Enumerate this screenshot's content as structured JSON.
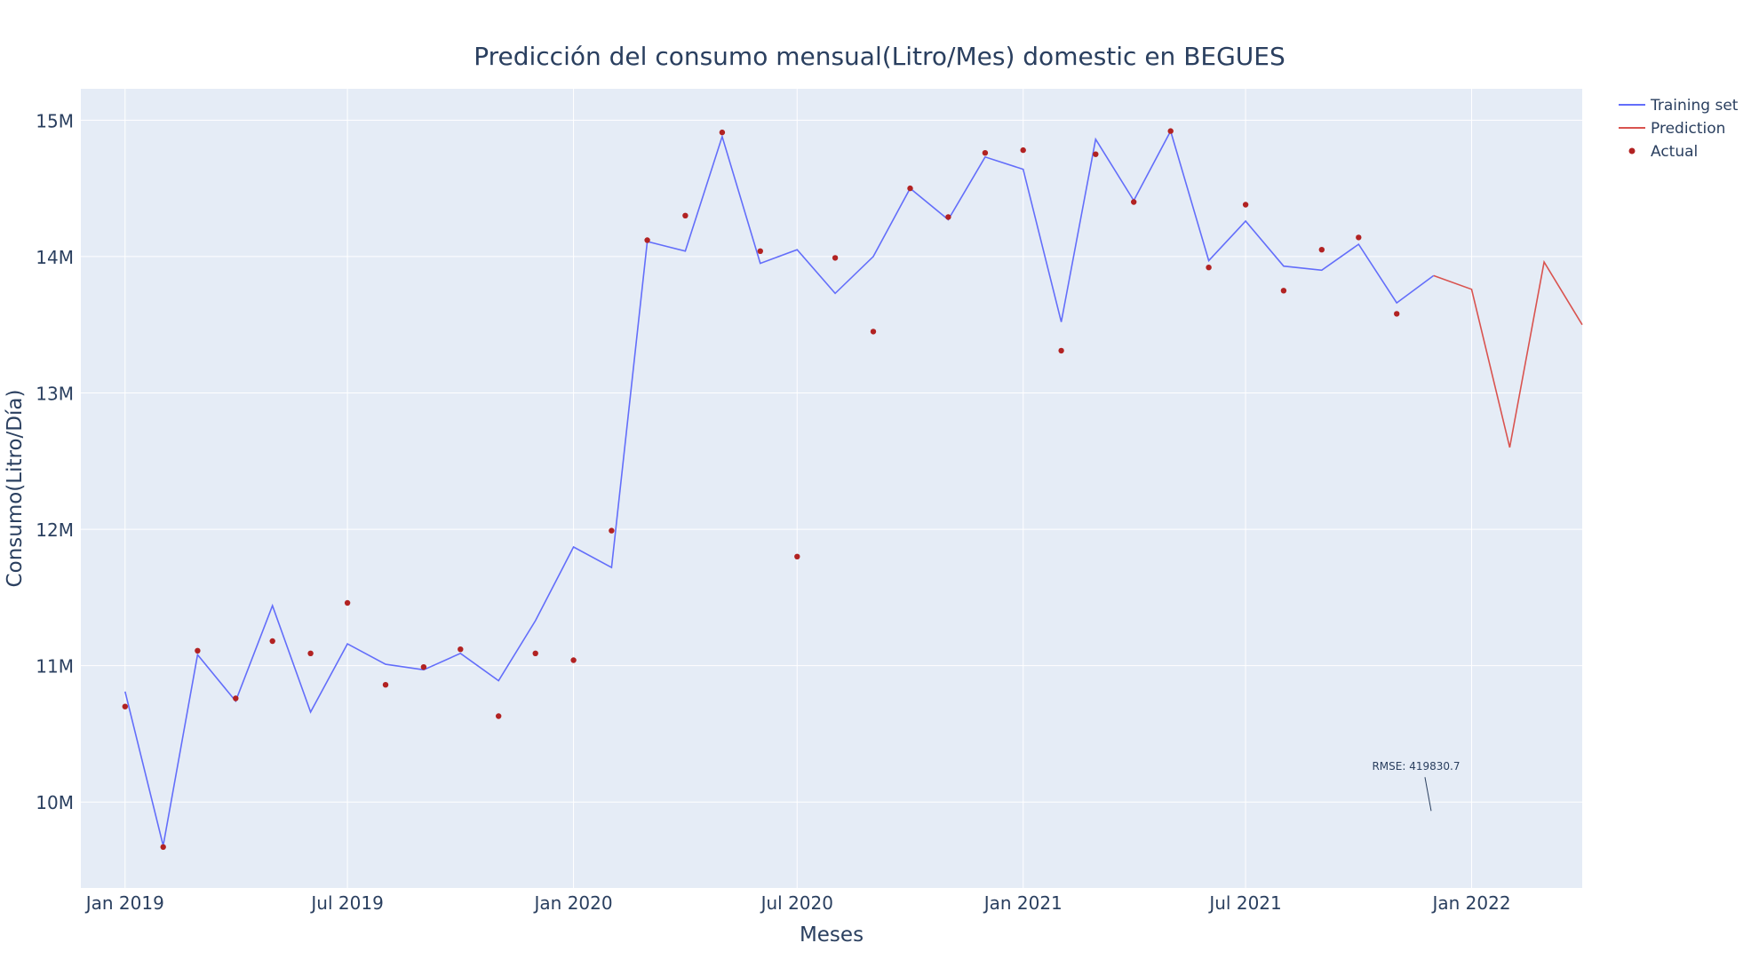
{
  "colors": {
    "training": "#636efa",
    "prediction": "#d9534f",
    "actual": "#b22222",
    "plot_bg": "#e5ecf6",
    "grid": "#ffffff",
    "text": "#2a3f5f"
  },
  "chart_data": {
    "type": "line",
    "title": "Predicción del consumo mensual(Litro/Mes) domestic en BEGUES",
    "xlabel": "Meses",
    "ylabel": "Consumo(Litro/Día)",
    "xlim": [
      "2018-11-26",
      "2022-04-01"
    ],
    "ylim": [
      9370000,
      15230000
    ],
    "x_ticks": [
      {
        "date": "2019-01-01",
        "label": "Jan 2019"
      },
      {
        "date": "2019-07-01",
        "label": "Jul 2019"
      },
      {
        "date": "2020-01-01",
        "label": "Jan 2020"
      },
      {
        "date": "2020-07-01",
        "label": "Jul 2020"
      },
      {
        "date": "2021-01-01",
        "label": "Jan 2021"
      },
      {
        "date": "2021-07-01",
        "label": "Jul 2021"
      },
      {
        "date": "2022-01-01",
        "label": "Jan 2022"
      }
    ],
    "y_ticks": [
      {
        "value": 10000000,
        "label": "10M"
      },
      {
        "value": 11000000,
        "label": "11M"
      },
      {
        "value": 12000000,
        "label": "12M"
      },
      {
        "value": 13000000,
        "label": "13M"
      },
      {
        "value": 14000000,
        "label": "14M"
      },
      {
        "value": 15000000,
        "label": "15M"
      }
    ],
    "grid": true,
    "legend_position": "top-right",
    "series": [
      {
        "name": "Training set",
        "kind": "line",
        "x": [
          "2019-01-01",
          "2019-02-01",
          "2019-03-01",
          "2019-04-01",
          "2019-05-01",
          "2019-06-01",
          "2019-07-01",
          "2019-08-01",
          "2019-09-01",
          "2019-10-01",
          "2019-11-01",
          "2019-12-01",
          "2020-01-01",
          "2020-02-01",
          "2020-03-01",
          "2020-04-01",
          "2020-05-01",
          "2020-06-01",
          "2020-07-01",
          "2020-08-01",
          "2020-09-01",
          "2020-10-01",
          "2020-11-01",
          "2020-12-01",
          "2021-01-01",
          "2021-02-01",
          "2021-03-01",
          "2021-04-01",
          "2021-05-01",
          "2021-06-01",
          "2021-07-01",
          "2021-08-01",
          "2021-09-01",
          "2021-10-01",
          "2021-11-01",
          "2021-12-01"
        ],
        "y": [
          10810000,
          9680000,
          11080000,
          10740000,
          11440000,
          10660000,
          11160000,
          11010000,
          10970000,
          11090000,
          10890000,
          11330000,
          11870000,
          11720000,
          14110000,
          14040000,
          14880000,
          13950000,
          14050000,
          13730000,
          14000000,
          14500000,
          14270000,
          14730000,
          14640000,
          13520000,
          14860000,
          14410000,
          14920000,
          13970000,
          14260000,
          13930000,
          13900000,
          14090000,
          13660000,
          13860000
        ]
      },
      {
        "name": "Prediction",
        "kind": "line",
        "x": [
          "2021-12-01",
          "2022-01-01",
          "2022-02-01",
          "2022-03-01",
          "2022-04-01"
        ],
        "y": [
          13860000,
          13760000,
          12600000,
          13960000,
          13500000
        ]
      },
      {
        "name": "Actual",
        "kind": "markers",
        "x": [
          "2019-01-01",
          "2019-02-01",
          "2019-03-01",
          "2019-04-01",
          "2019-05-01",
          "2019-06-01",
          "2019-07-01",
          "2019-08-01",
          "2019-09-01",
          "2019-10-01",
          "2019-11-01",
          "2019-12-01",
          "2020-01-01",
          "2020-02-01",
          "2020-03-01",
          "2020-04-01",
          "2020-05-01",
          "2020-06-01",
          "2020-07-01",
          "2020-08-01",
          "2020-09-01",
          "2020-10-01",
          "2020-11-01",
          "2020-12-01",
          "2021-01-01",
          "2021-02-01",
          "2021-03-01",
          "2021-04-01",
          "2021-05-01",
          "2021-06-01",
          "2021-07-01",
          "2021-08-01",
          "2021-09-01",
          "2021-10-01",
          "2021-11-01"
        ],
        "y": [
          10700000,
          9670000,
          11110000,
          10760000,
          11180000,
          11090000,
          11460000,
          10860000,
          10990000,
          11120000,
          10630000,
          11090000,
          11040000,
          11990000,
          14120000,
          14300000,
          14910000,
          14040000,
          11800000,
          13990000,
          13450000,
          14500000,
          14290000,
          14760000,
          14780000,
          13310000,
          14750000,
          14400000,
          14920000,
          13920000,
          14380000,
          13750000,
          14050000,
          14140000,
          13580000
        ]
      }
    ],
    "annotation": {
      "text": "RMSE: 419830.7",
      "x": "2021-11-24",
      "y": 10000000
    }
  }
}
